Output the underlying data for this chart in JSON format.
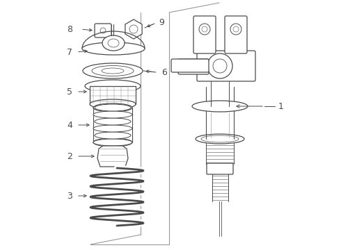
{
  "bg_color": "#ffffff",
  "line_color": "#4a4a4a",
  "box_color": "#aaaaaa",
  "fig_width": 4.9,
  "fig_height": 3.6,
  "dpi": 100,
  "panel_line_color": "#999999"
}
